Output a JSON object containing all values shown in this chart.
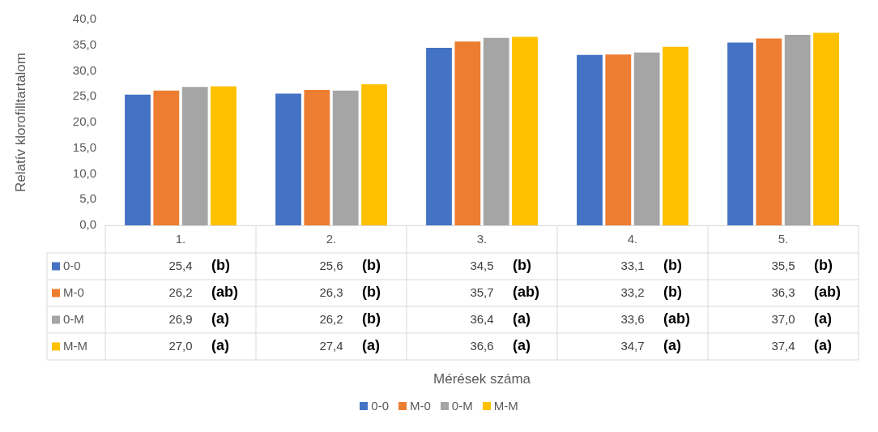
{
  "chart_data": {
    "type": "bar",
    "ylabel": "Relatív klorofilltartalom",
    "categories": [
      "1.",
      "2.",
      "3.",
      "4.",
      "5."
    ],
    "ylim": [
      0,
      40
    ],
    "yticks": [
      {
        "value": 0,
        "label": "0,0"
      },
      {
        "value": 5,
        "label": "5,0"
      },
      {
        "value": 10,
        "label": "10,0"
      },
      {
        "value": 15,
        "label": "15,0"
      },
      {
        "value": 20,
        "label": "20,0"
      },
      {
        "value": 25,
        "label": "25,0"
      },
      {
        "value": 30,
        "label": "30,0"
      },
      {
        "value": 35,
        "label": "35,0"
      },
      {
        "value": 40,
        "label": "40,0"
      }
    ],
    "grid": false,
    "legend": "bottom",
    "series": [
      {
        "name": "0-0",
        "color": "#4472c4",
        "values": [
          25.4,
          25.6,
          34.5,
          33.1,
          35.5
        ],
        "value_labels": [
          "25,4",
          "25,6",
          "34,5",
          "33,1",
          "35,5"
        ]
      },
      {
        "name": "M-0",
        "color": "#ed7d31",
        "values": [
          26.2,
          26.3,
          35.7,
          33.2,
          36.3
        ],
        "value_labels": [
          "26,2",
          "26,3",
          "35,7",
          "33,2",
          "36,3"
        ]
      },
      {
        "name": "0-M",
        "color": "#a5a5a5",
        "values": [
          26.9,
          26.2,
          36.4,
          33.6,
          37.0
        ],
        "value_labels": [
          "26,9",
          "26,2",
          "36,4",
          "33,6",
          "37,0"
        ]
      },
      {
        "name": "M-M",
        "color": "#ffc000",
        "values": [
          27.0,
          27.4,
          36.6,
          34.7,
          37.4
        ],
        "value_labels": [
          "27,0",
          "27,4",
          "36,6",
          "34,7",
          "37,4"
        ]
      }
    ],
    "annotations": [
      "(b)",
      "(b)",
      "(b)",
      "(b)",
      "(b)",
      "(ab)",
      "(b)",
      "(ab)",
      "(b)",
      "(ab)",
      "(a)",
      "(b)",
      "(a)",
      "(ab)",
      "(a)",
      "(a)",
      "(a)",
      "(a)",
      "(a)",
      "(a)",
      "Mérések száma"
    ]
  }
}
